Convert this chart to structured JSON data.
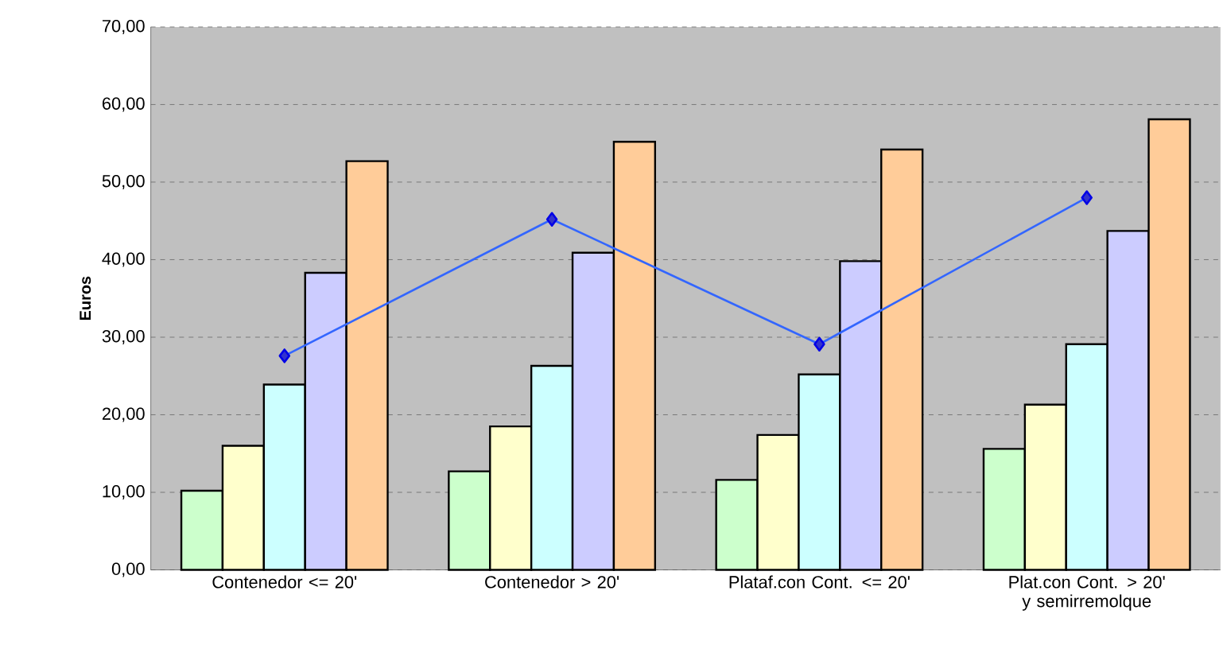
{
  "chart_data": {
    "type": "bar",
    "ylabel": "Euros",
    "categories": [
      "Contenedor <= 20'",
      "Contenedor > 20'",
      "Plataf.con Cont. <= 20'",
      "Plat.con Cont. > 20' y semirremolque"
    ],
    "series": [
      {
        "color": "#ccffcc",
        "values": [
          10.2,
          12.7,
          11.6,
          15.6
        ]
      },
      {
        "color": "#ffffcc",
        "values": [
          16.0,
          18.5,
          17.4,
          21.3
        ]
      },
      {
        "color": "#ccffff",
        "values": [
          23.9,
          26.3,
          25.2,
          29.1
        ]
      },
      {
        "color": "#ccccff",
        "values": [
          38.3,
          40.9,
          39.8,
          43.7
        ]
      },
      {
        "color": "#ffcc99",
        "values": [
          52.7,
          55.2,
          54.2,
          58.1
        ]
      },
      {
        "type": "line",
        "color": "#3366ff",
        "marker": "diamond",
        "values": [
          27.6,
          45.2,
          29.1,
          48.0
        ]
      }
    ],
    "ylim": [
      0,
      70
    ],
    "yticks": [
      {
        "value": 0,
        "label": "0,00"
      },
      {
        "value": 10,
        "label": "10,00"
      },
      {
        "value": 20,
        "label": "20,00"
      },
      {
        "value": 30,
        "label": "30,00"
      },
      {
        "value": 40,
        "label": "40,00"
      },
      {
        "value": 50,
        "label": "50,00"
      },
      {
        "value": 60,
        "label": "60,00"
      },
      {
        "value": 70,
        "label": "70,00"
      }
    ],
    "grid": "y"
  }
}
